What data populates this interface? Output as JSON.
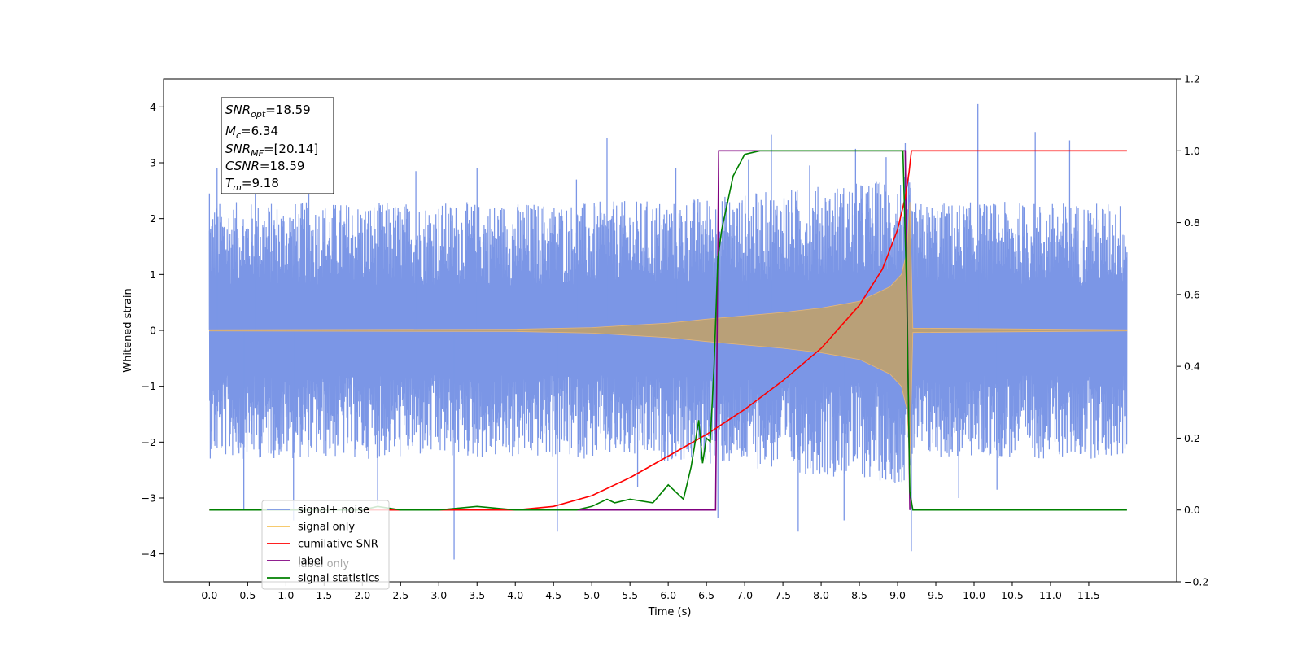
{
  "chart_data": {
    "type": "line",
    "xlabel": "Time (s)",
    "ylabel": "Whitened strain",
    "xlim": [
      -0.6,
      12.65
    ],
    "ylim": [
      -4.5,
      4.5
    ],
    "ylim_right": [
      -0.2,
      1.2
    ],
    "x_ticks": [
      0.0,
      0.5,
      1.0,
      1.5,
      2.0,
      2.5,
      3.0,
      3.5,
      4.0,
      4.5,
      5.0,
      5.5,
      6.0,
      6.5,
      7.0,
      7.5,
      8.0,
      8.5,
      9.0,
      9.5,
      10.0,
      10.5,
      11.0,
      11.5
    ],
    "x_tick_labels": [
      "0.0",
      "0.5",
      "1.0",
      "1.5",
      "2.0",
      "2.5",
      "3.0",
      "3.5",
      "4.0",
      "4.5",
      "5.0",
      "5.5",
      "6.0",
      "6.5",
      "7.0",
      "7.5",
      "8.0",
      "8.5",
      "9.0",
      "9.5",
      "10.0",
      "10.5",
      "11.0",
      "11.5"
    ],
    "y_ticks": [
      -4,
      -3,
      -2,
      -1,
      0,
      1,
      2,
      3,
      4
    ],
    "y_tick_labels": [
      "−4",
      "−3",
      "−2",
      "−1",
      "0",
      "1",
      "2",
      "3",
      "4"
    ],
    "y2_ticks": [
      -0.2,
      0.0,
      0.2,
      0.4,
      0.6,
      0.8,
      1.0,
      1.2
    ],
    "y2_tick_labels": [
      "−0.2",
      "0.0",
      "0.2",
      "0.4",
      "0.6",
      "0.8",
      "1.0",
      "1.2"
    ],
    "grid": false,
    "legend_position": "bottom-left",
    "annotations": {
      "snr_opt": {
        "main": "SNR",
        "sub": "opt",
        "value": "=18.59"
      },
      "mc": {
        "main": "M",
        "sub": "c",
        "value": "=6.34"
      },
      "snr_mf": {
        "main": "SNR",
        "sub": "MF",
        "value": "=[20.14]"
      },
      "csnr": {
        "main": "CSNR",
        "value": "=18.59"
      },
      "tm": {
        "main": "T",
        "sub": "m",
        "value": "=9.18"
      }
    },
    "series": [
      {
        "name": "signal+ noise",
        "axis": "left",
        "color": "#7b96e6",
        "envelope": {
          "x": [
            0.0,
            1.0,
            2.0,
            3.0,
            4.0,
            5.0,
            6.0,
            7.0,
            8.0,
            8.5,
            9.0,
            9.15,
            9.2,
            10.0,
            11.0,
            12.0
          ],
          "upper": [
            2.3,
            2.3,
            2.3,
            2.3,
            2.3,
            2.3,
            2.35,
            2.45,
            2.6,
            2.65,
            2.75,
            2.8,
            2.3,
            2.3,
            2.3,
            2.3
          ],
          "lower": [
            -2.3,
            -2.3,
            -2.3,
            -2.3,
            -2.3,
            -2.3,
            -2.35,
            -2.45,
            -2.6,
            -2.65,
            -2.75,
            -2.8,
            -2.3,
            -2.3,
            -2.3,
            -2.3
          ]
        },
        "spikes": [
          [
            0.0,
            2.45
          ],
          [
            0.1,
            2.9
          ],
          [
            0.45,
            -3.2
          ],
          [
            0.6,
            2.55
          ],
          [
            1.1,
            -3.4
          ],
          [
            1.3,
            2.6
          ],
          [
            2.2,
            -3.1
          ],
          [
            2.7,
            2.85
          ],
          [
            3.2,
            -4.1
          ],
          [
            3.5,
            2.9
          ],
          [
            4.55,
            -3.6
          ],
          [
            4.8,
            2.7
          ],
          [
            5.2,
            3.45
          ],
          [
            5.6,
            -2.8
          ],
          [
            6.1,
            2.9
          ],
          [
            6.65,
            -3.35
          ],
          [
            7.05,
            3.05
          ],
          [
            7.35,
            3.5
          ],
          [
            7.7,
            -3.6
          ],
          [
            7.85,
            2.95
          ],
          [
            8.3,
            -3.4
          ],
          [
            8.45,
            3.25
          ],
          [
            8.85,
            3.1
          ],
          [
            9.1,
            3.35
          ],
          [
            9.18,
            -3.95
          ],
          [
            9.8,
            -3.0
          ],
          [
            10.05,
            4.05
          ],
          [
            10.3,
            -2.85
          ],
          [
            10.8,
            3.55
          ],
          [
            11.25,
            3.4
          ]
        ]
      },
      {
        "name": "signal only",
        "axis": "left",
        "color": "#f5c35a",
        "envelope": {
          "x": [
            0.0,
            4.0,
            5.0,
            6.0,
            6.5,
            7.0,
            7.5,
            8.0,
            8.5,
            8.9,
            9.05,
            9.12,
            9.16,
            9.2,
            12.0
          ],
          "upper": [
            0.01,
            0.02,
            0.05,
            0.13,
            0.2,
            0.26,
            0.32,
            0.4,
            0.52,
            0.78,
            1.0,
            1.4,
            2.3,
            0.04,
            0.01
          ],
          "lower": [
            -0.01,
            -0.02,
            -0.05,
            -0.13,
            -0.2,
            -0.26,
            -0.32,
            -0.4,
            -0.52,
            -0.78,
            -1.0,
            -1.4,
            -2.3,
            -0.04,
            -0.01
          ]
        }
      },
      {
        "name": "cumilative SNR",
        "axis": "right",
        "color": "#ff0000",
        "x": [
          0.0,
          4.0,
          4.5,
          5.0,
          5.5,
          6.0,
          6.5,
          7.0,
          7.5,
          8.0,
          8.5,
          8.8,
          9.0,
          9.1,
          9.15,
          9.18,
          12.0
        ],
        "y": [
          0.0,
          0.0,
          0.01,
          0.04,
          0.09,
          0.15,
          0.21,
          0.28,
          0.36,
          0.45,
          0.57,
          0.67,
          0.78,
          0.87,
          0.94,
          1.0,
          1.0
        ]
      },
      {
        "name": "label",
        "axis": "right",
        "color": "#800080",
        "x": [
          0.0,
          6.62,
          6.66,
          9.1,
          9.16
        ],
        "y": [
          0.0,
          0.0,
          1.0,
          1.0,
          0.0
        ]
      },
      {
        "name": "label only",
        "axis": "right",
        "color": "#800080",
        "hidden": true,
        "x": [],
        "y": []
      },
      {
        "name": "signal statistics",
        "axis": "right",
        "color": "#008000",
        "x": [
          0.0,
          1.0,
          2.0,
          2.2,
          2.5,
          3.0,
          3.5,
          4.0,
          4.5,
          4.8,
          5.0,
          5.2,
          5.3,
          5.5,
          5.8,
          6.0,
          6.2,
          6.3,
          6.4,
          6.45,
          6.5,
          6.55,
          6.6,
          6.65,
          6.7,
          6.85,
          7.0,
          7.2,
          7.5,
          8.0,
          8.5,
          9.0,
          9.07,
          9.12,
          9.16,
          9.2,
          12.0
        ],
        "y": [
          0.0,
          0.0,
          0.0,
          0.01,
          0.0,
          0.0,
          0.01,
          0.0,
          0.0,
          0.0,
          0.01,
          0.03,
          0.02,
          0.03,
          0.02,
          0.07,
          0.03,
          0.12,
          0.25,
          0.13,
          0.2,
          0.19,
          0.4,
          0.7,
          0.78,
          0.93,
          0.99,
          1.0,
          1.0,
          1.0,
          1.0,
          1.0,
          1.0,
          0.6,
          0.05,
          0.0,
          0.0
        ]
      }
    ]
  }
}
